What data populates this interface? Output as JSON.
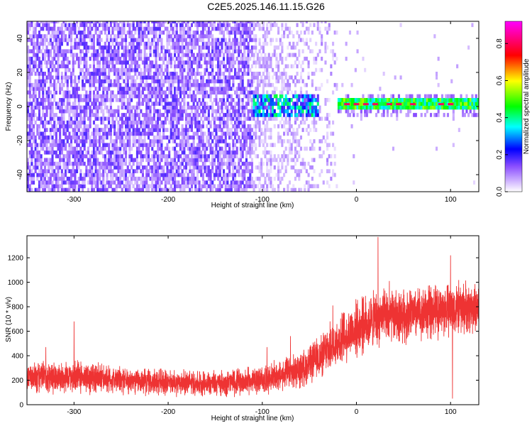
{
  "title": "C2E5.2025.146.11.15.G26",
  "chart_data": [
    {
      "type": "heatmap",
      "xlabel": "Height of straight line (km)",
      "ylabel": "Frequency (Hz)",
      "xlim": [
        -350,
        130
      ],
      "ylim": [
        -50,
        50
      ],
      "xticks": [
        -300,
        -200,
        -100,
        0,
        100
      ],
      "yticks": [
        -40,
        -20,
        0,
        20,
        40
      ],
      "colorbar": {
        "label": "Normalized spectral amplitude",
        "range": [
          0,
          0.92
        ],
        "ticks": [
          0.0,
          0.2,
          0.4,
          0.6,
          0.8
        ],
        "tick_labels": [
          "0.0",
          "0.2",
          "0.4",
          "0.6",
          "0.8"
        ],
        "colors": [
          "#ffffff",
          "#9b5cff",
          "#0000ff",
          "#00ffff",
          "#00ff00",
          "#ffff00",
          "#ff0000",
          "#ff00ff"
        ]
      },
      "regions": [
        {
          "x": [
            -350,
            -110
          ],
          "y": [
            -50,
            50
          ],
          "amplitude": 0.05,
          "density": "dense"
        },
        {
          "x": [
            -110,
            -20
          ],
          "y": [
            -50,
            50
          ],
          "amplitude": 0.03,
          "density": "sparse"
        },
        {
          "x": [
            -110,
            -20
          ],
          "y": [
            -7,
            7
          ],
          "amplitude": 0.25,
          "density": "dense"
        },
        {
          "x": [
            -20,
            130
          ],
          "y": [
            -1,
            3
          ],
          "amplitude": 0.45,
          "density": "band"
        }
      ],
      "band_peaks": [
        {
          "x": -10,
          "y": 1,
          "amplitude": 0.8
        },
        {
          "x": 0,
          "y": 1,
          "amplitude": 0.8
        },
        {
          "x": 10,
          "y": 1,
          "amplitude": 0.8
        },
        {
          "x": 20,
          "y": 1,
          "amplitude": 0.8
        },
        {
          "x": 35,
          "y": 1,
          "amplitude": 0.8
        },
        {
          "x": 45,
          "y": 1,
          "amplitude": 0.8
        },
        {
          "x": 60,
          "y": 1,
          "amplitude": 0.8
        },
        {
          "x": 90,
          "y": 1,
          "amplitude": 0.8
        },
        {
          "x": 100,
          "y": 1,
          "amplitude": 0.8
        }
      ]
    },
    {
      "type": "line",
      "xlabel": "Height of straight line (km)",
      "ylabel": "SNR (10 * v/v)",
      "xlim": [
        -350,
        130
      ],
      "ylim": [
        0,
        1380
      ],
      "xticks": [
        -300,
        -200,
        -100,
        0,
        100
      ],
      "yticks": [
        0,
        200,
        400,
        600,
        800,
        1000,
        1200
      ],
      "color": "#ee3333",
      "x": [
        -350,
        -300,
        -250,
        -200,
        -150,
        -100,
        -60,
        -40,
        -20,
        0,
        20,
        40,
        60,
        80,
        100,
        130
      ],
      "y": [
        220,
        230,
        200,
        180,
        175,
        200,
        280,
        380,
        520,
        620,
        700,
        720,
        740,
        760,
        780,
        800
      ],
      "noise_amplitude": [
        140,
        140,
        120,
        110,
        110,
        120,
        150,
        180,
        220,
        240,
        240,
        230,
        230,
        230,
        230,
        230
      ],
      "spikes": [
        {
          "x": -330,
          "y": 470
        },
        {
          "x": -300,
          "y": 680
        },
        {
          "x": -95,
          "y": 470
        },
        {
          "x": -70,
          "y": 560
        },
        {
          "x": -25,
          "y": 810
        },
        {
          "x": 23,
          "y": 1370
        },
        {
          "x": 35,
          "y": 1010
        },
        {
          "x": 100,
          "y": 1220
        },
        {
          "x": 102,
          "y": 50
        }
      ]
    }
  ]
}
